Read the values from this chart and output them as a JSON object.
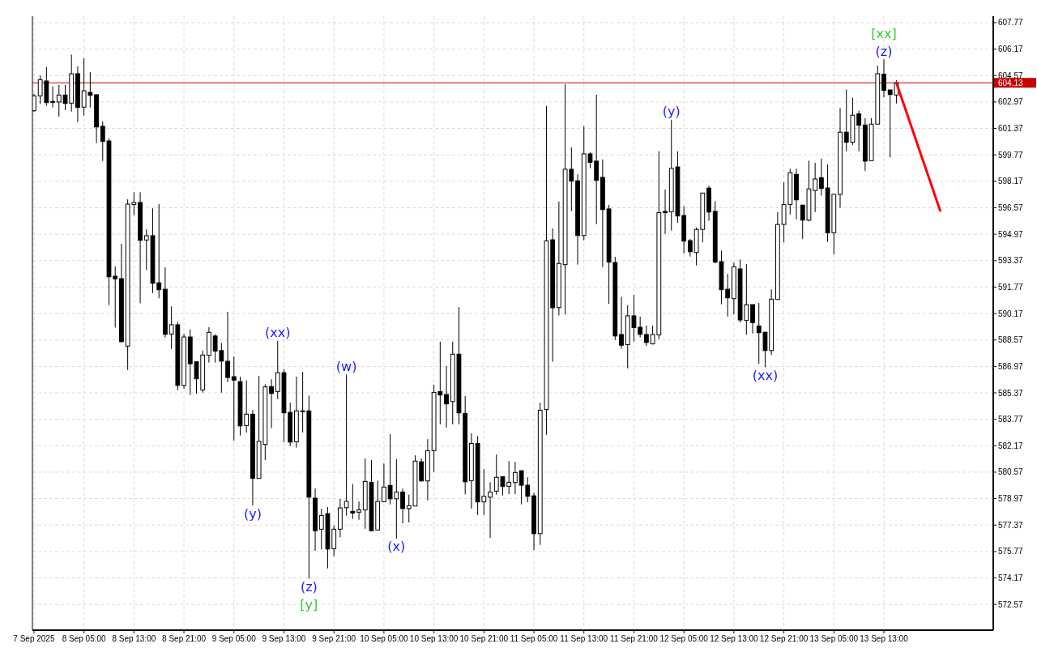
{
  "chart_data": {
    "type": "candlestick",
    "x": [
      "2025-09-07T21:00",
      "2025-09-07T22:00",
      "2025-09-07T23:00",
      "2025-09-08T00:00",
      "2025-09-08T01:00",
      "2025-09-08T02:00",
      "2025-09-08T03:00",
      "2025-09-08T04:00",
      "2025-09-08T05:00",
      "2025-09-08T06:00",
      "2025-09-08T07:00",
      "2025-09-08T08:00",
      "2025-09-08T09:00",
      "2025-09-08T10:00",
      "2025-09-08T11:00",
      "2025-09-08T12:00",
      "2025-09-08T13:00",
      "2025-09-08T14:00",
      "2025-09-08T15:00",
      "2025-09-08T16:00",
      "2025-09-08T17:00",
      "2025-09-08T18:00",
      "2025-09-08T19:00",
      "2025-09-08T20:00",
      "2025-09-08T21:00",
      "2025-09-08T22:00",
      "2025-09-08T23:00",
      "2025-09-09T00:00",
      "2025-09-09T01:00",
      "2025-09-09T02:00",
      "2025-09-09T03:00",
      "2025-09-09T04:00",
      "2025-09-09T05:00",
      "2025-09-09T06:00",
      "2025-09-09T07:00",
      "2025-09-09T08:00",
      "2025-09-09T09:00",
      "2025-09-09T10:00",
      "2025-09-09T11:00",
      "2025-09-09T12:00",
      "2025-09-09T13:00",
      "2025-09-09T14:00",
      "2025-09-09T15:00",
      "2025-09-09T16:00",
      "2025-09-09T17:00",
      "2025-09-09T18:00",
      "2025-09-09T19:00",
      "2025-09-09T20:00",
      "2025-09-09T21:00",
      "2025-09-09T22:00",
      "2025-09-09T23:00",
      "2025-09-10T00:00",
      "2025-09-10T01:00",
      "2025-09-10T02:00",
      "2025-09-10T03:00",
      "2025-09-10T04:00",
      "2025-09-10T05:00",
      "2025-09-10T06:00",
      "2025-09-10T07:00",
      "2025-09-10T08:00",
      "2025-09-10T09:00",
      "2025-09-10T10:00",
      "2025-09-10T11:00",
      "2025-09-10T12:00",
      "2025-09-10T13:00",
      "2025-09-10T14:00",
      "2025-09-10T15:00",
      "2025-09-10T16:00",
      "2025-09-10T17:00",
      "2025-09-10T18:00",
      "2025-09-10T19:00",
      "2025-09-10T20:00",
      "2025-09-10T21:00",
      "2025-09-10T22:00",
      "2025-09-10T23:00",
      "2025-09-11T00:00",
      "2025-09-11T01:00",
      "2025-09-11T02:00",
      "2025-09-11T03:00",
      "2025-09-11T04:00",
      "2025-09-11T05:00",
      "2025-09-11T06:00",
      "2025-09-11T07:00",
      "2025-09-11T08:00",
      "2025-09-11T09:00",
      "2025-09-11T10:00",
      "2025-09-11T11:00",
      "2025-09-11T12:00",
      "2025-09-11T13:00",
      "2025-09-11T14:00",
      "2025-09-11T15:00",
      "2025-09-11T16:00",
      "2025-09-11T17:00",
      "2025-09-11T18:00",
      "2025-09-11T19:00",
      "2025-09-11T20:00",
      "2025-09-11T21:00",
      "2025-09-11T22:00",
      "2025-09-11T23:00",
      "2025-09-12T00:00",
      "2025-09-12T01:00",
      "2025-09-12T02:00",
      "2025-09-12T03:00",
      "2025-09-12T04:00",
      "2025-09-12T05:00",
      "2025-09-12T06:00",
      "2025-09-12T07:00",
      "2025-09-12T08:00",
      "2025-09-12T09:00",
      "2025-09-12T10:00",
      "2025-09-12T11:00",
      "2025-09-12T12:00",
      "2025-09-12T13:00",
      "2025-09-12T14:00",
      "2025-09-12T15:00",
      "2025-09-12T16:00",
      "2025-09-12T17:00",
      "2025-09-12T18:00",
      "2025-09-12T19:00",
      "2025-09-12T20:00",
      "2025-09-12T21:00",
      "2025-09-12T22:00",
      "2025-09-12T23:00",
      "2025-09-13T00:00",
      "2025-09-13T01:00",
      "2025-09-13T02:00",
      "2025-09-13T03:00",
      "2025-09-13T04:00",
      "2025-09-13T05:00",
      "2025-09-13T06:00",
      "2025-09-13T07:00",
      "2025-09-13T08:00",
      "2025-09-13T09:00",
      "2025-09-13T10:00",
      "2025-09-13T11:00",
      "2025-09-13T12:00",
      "2025-09-13T13:00",
      "2025-09-13T14:00",
      "2025-09-13T15:00"
    ],
    "ohlc": [
      [
        602.44,
        603.46,
        602.38,
        603.34
      ],
      [
        603.34,
        604.57,
        602.85,
        604.32
      ],
      [
        604.24,
        605.09,
        602.74,
        602.93
      ],
      [
        603.0,
        603.91,
        602.64,
        602.98
      ],
      [
        602.97,
        604.0,
        602.08,
        603.39
      ],
      [
        603.39,
        604.0,
        602.48,
        602.88
      ],
      [
        602.9,
        605.84,
        602.39,
        604.68
      ],
      [
        604.68,
        605.12,
        601.76,
        602.64
      ],
      [
        602.66,
        605.61,
        602.15,
        603.65
      ],
      [
        603.55,
        604.78,
        602.64,
        603.37
      ],
      [
        603.41,
        603.41,
        600.48,
        601.46
      ],
      [
        601.5,
        601.79,
        599.4,
        600.58
      ],
      [
        600.61,
        600.76,
        590.68,
        592.39
      ],
      [
        592.43,
        593.02,
        589.32,
        592.27
      ],
      [
        592.28,
        594.39,
        588.39,
        588.47
      ],
      [
        588.2,
        597.08,
        586.76,
        596.79
      ],
      [
        596.77,
        597.51,
        596.12,
        596.89
      ],
      [
        596.89,
        597.51,
        590.79,
        594.6
      ],
      [
        594.62,
        595.26,
        592.8,
        594.88
      ],
      [
        594.88,
        596.53,
        591.41,
        592.0
      ],
      [
        592.03,
        596.79,
        591.09,
        591.61
      ],
      [
        591.64,
        592.97,
        588.72,
        588.91
      ],
      [
        588.93,
        590.6,
        588.03,
        589.49
      ],
      [
        589.49,
        589.67,
        585.53,
        585.82
      ],
      [
        585.82,
        588.95,
        585.61,
        588.75
      ],
      [
        588.75,
        589.21,
        585.24,
        587.13
      ],
      [
        587.25,
        587.25,
        585.32,
        586.22
      ],
      [
        585.55,
        587.93,
        585.38,
        587.66
      ],
      [
        587.64,
        589.34,
        587.2,
        589.03
      ],
      [
        588.81,
        588.91,
        587.2,
        587.9
      ],
      [
        587.93,
        588.39,
        585.38,
        587.29
      ],
      [
        587.28,
        590.27,
        586.02,
        586.3
      ],
      [
        586.35,
        587.57,
        582.48,
        586.14
      ],
      [
        586.05,
        586.35,
        582.79,
        583.37
      ],
      [
        583.39,
        586.12,
        582.97,
        584.08
      ],
      [
        584.08,
        584.34,
        578.55,
        580.19
      ],
      [
        580.19,
        586.4,
        580.19,
        582.43
      ],
      [
        582.25,
        585.89,
        581.31,
        585.73
      ],
      [
        585.75,
        586.19,
        583.23,
        585.33
      ],
      [
        585.45,
        588.52,
        584.99,
        586.59
      ],
      [
        586.59,
        586.79,
        582.39,
        584.16
      ],
      [
        584.19,
        584.78,
        582.15,
        582.39
      ],
      [
        582.41,
        586.35,
        582.05,
        584.28
      ],
      [
        584.28,
        586.64,
        582.97,
        584.26
      ],
      [
        584.28,
        585.21,
        574.13,
        579.06
      ],
      [
        579.0,
        579.58,
        575.81,
        577.03
      ],
      [
        577.12,
        578.36,
        575.89,
        577.95
      ],
      [
        578.06,
        578.46,
        574.75,
        575.92
      ],
      [
        575.94,
        577.34,
        575.48,
        577.12
      ],
      [
        577.12,
        578.95,
        576.63,
        578.41
      ],
      [
        578.42,
        586.48,
        577.93,
        578.8
      ],
      [
        578.2,
        579.86,
        577.74,
        578.1
      ],
      [
        578.15,
        578.8,
        577.69,
        578.29
      ],
      [
        578.29,
        581.4,
        577.15,
        580.01
      ],
      [
        579.96,
        581.3,
        576.99,
        577.03
      ],
      [
        577.07,
        580.06,
        577.07,
        578.8
      ],
      [
        578.78,
        581.1,
        578.78,
        579.67
      ],
      [
        579.77,
        582.87,
        578.62,
        578.96
      ],
      [
        578.96,
        581.35,
        576.55,
        579.37
      ],
      [
        579.37,
        579.57,
        577.48,
        578.37
      ],
      [
        578.37,
        579.21,
        577.53,
        578.54
      ],
      [
        578.52,
        581.59,
        578.52,
        581.24
      ],
      [
        581.2,
        581.4,
        579.99,
        580.04
      ],
      [
        580.04,
        582.57,
        578.86,
        581.87
      ],
      [
        581.87,
        585.86,
        580.58,
        585.4
      ],
      [
        585.45,
        588.47,
        583.46,
        585.24
      ],
      [
        585.27,
        587.0,
        583.27,
        584.7
      ],
      [
        584.84,
        588.47,
        583.46,
        587.71
      ],
      [
        587.71,
        590.56,
        583.46,
        584.16
      ],
      [
        584.13,
        585.17,
        579.23,
        579.99
      ],
      [
        580.06,
        582.92,
        578.37,
        582.31
      ],
      [
        582.31,
        582.76,
        577.98,
        578.77
      ],
      [
        578.77,
        580.76,
        577.98,
        579.11
      ],
      [
        579.06,
        579.96,
        576.59,
        579.37
      ],
      [
        579.42,
        581.64,
        579.21,
        580.26
      ],
      [
        580.3,
        580.3,
        579.16,
        579.7
      ],
      [
        579.72,
        581.24,
        579.24,
        579.96
      ],
      [
        579.94,
        581.2,
        579.24,
        580.55
      ],
      [
        580.66,
        580.66,
        578.62,
        579.78
      ],
      [
        579.78,
        580.26,
        578.75,
        579.11
      ],
      [
        579.14,
        579.32,
        575.86,
        576.85
      ],
      [
        576.85,
        584.78,
        576.17,
        584.32
      ],
      [
        584.37,
        602.72,
        582.83,
        594.57
      ],
      [
        594.63,
        595.32,
        587.25,
        590.52
      ],
      [
        590.53,
        596.94,
        590.06,
        593.2
      ],
      [
        593.13,
        604.04,
        590.11,
        598.9
      ],
      [
        598.9,
        600.22,
        596.36,
        598.18
      ],
      [
        598.2,
        598.59,
        593.13,
        594.89
      ],
      [
        594.89,
        601.5,
        594.6,
        599.83
      ],
      [
        599.83,
        599.93,
        598.96,
        599.31
      ],
      [
        599.39,
        603.41,
        595.58,
        598.23
      ],
      [
        598.41,
        599.49,
        592.98,
        596.46
      ],
      [
        596.5,
        596.74,
        590.76,
        593.28
      ],
      [
        593.26,
        593.6,
        588.57,
        588.81
      ],
      [
        588.9,
        591.17,
        588.03,
        588.25
      ],
      [
        588.29,
        590.68,
        586.85,
        590.03
      ],
      [
        590.03,
        591.3,
        588.47,
        589.32
      ],
      [
        589.34,
        589.98,
        588.72,
        588.91
      ],
      [
        588.9,
        589.44,
        588.21,
        588.42
      ],
      [
        588.34,
        589.44,
        588.29,
        588.9
      ],
      [
        588.88,
        599.99,
        588.62,
        596.28
      ],
      [
        596.35,
        597.67,
        594.99,
        596.27
      ],
      [
        596.33,
        601.9,
        595.19,
        598.95
      ],
      [
        599.04,
        599.98,
        595.66,
        596.07
      ],
      [
        596.1,
        596.66,
        593.81,
        594.55
      ],
      [
        594.58,
        594.68,
        593.62,
        593.91
      ],
      [
        593.86,
        595.38,
        593.08,
        595.26
      ],
      [
        595.26,
        597.46,
        594.47,
        597.46
      ],
      [
        597.76,
        597.9,
        595.78,
        596.31
      ],
      [
        596.35,
        596.97,
        593.21,
        593.28
      ],
      [
        593.31,
        593.98,
        590.73,
        591.61
      ],
      [
        591.64,
        592.57,
        589.99,
        591.12
      ],
      [
        591.07,
        593.25,
        590.12,
        593.0
      ],
      [
        592.87,
        593.44,
        589.62,
        589.78
      ],
      [
        589.75,
        593.16,
        588.88,
        590.7
      ],
      [
        590.71,
        590.71,
        588.96,
        589.62
      ],
      [
        589.42,
        590.81,
        587.13,
        589.01
      ],
      [
        589.04,
        589.04,
        586.92,
        587.93
      ],
      [
        587.93,
        591.63,
        587.66,
        591.04
      ],
      [
        591.02,
        596.3,
        591.01,
        595.56
      ],
      [
        595.56,
        598.11,
        594.47,
        596.77
      ],
      [
        596.77,
        598.93,
        596.17,
        598.69
      ],
      [
        598.59,
        598.93,
        595.87,
        597.05
      ],
      [
        596.73,
        596.73,
        594.67,
        595.82
      ],
      [
        595.82,
        599.42,
        595.75,
        597.71
      ],
      [
        597.61,
        599.29,
        596.31,
        598.31
      ],
      [
        598.39,
        599.54,
        597.3,
        597.74
      ],
      [
        597.77,
        599.19,
        594.5,
        595.06
      ],
      [
        595.06,
        597.38,
        593.75,
        597.38
      ],
      [
        597.38,
        602.61,
        596.56,
        601.14
      ],
      [
        601.14,
        603.72,
        599.99,
        600.53
      ],
      [
        600.53,
        603.23,
        600.37,
        602.17
      ],
      [
        602.25,
        602.44,
        599.99,
        601.56
      ],
      [
        601.58,
        601.99,
        598.8,
        599.39
      ],
      [
        599.42,
        601.99,
        599.42,
        601.63
      ],
      [
        601.63,
        605.17,
        601.63,
        604.68
      ],
      [
        604.65,
        605.55,
        603.26,
        603.67
      ],
      [
        603.7,
        603.7,
        599.62,
        603.42
      ],
      [
        603.39,
        604.28,
        602.88,
        604.13
      ]
    ],
    "series": [
      {
        "type": "line",
        "color": "#ff0000",
        "x": [
          "2025-09-13T15:00",
          "2025-09-13T22:00"
        ],
        "values": [
          604.13,
          596.4
        ]
      }
    ],
    "xlim": [
      "2025-09-07T20:45",
      "2025-09-14T06:30"
    ],
    "xticks": [
      {
        "value": "2025-09-07T21:00",
        "label": "7 Sep 2025"
      },
      {
        "value": "2025-09-08T05:00",
        "label": "8 Sep 05:00"
      },
      {
        "value": "2025-09-08T13:00",
        "label": "8 Sep 13:00"
      },
      {
        "value": "2025-09-08T21:00",
        "label": "8 Sep 21:00"
      },
      {
        "value": "2025-09-09T05:00",
        "label": "9 Sep 05:00"
      },
      {
        "value": "2025-09-09T13:00",
        "label": "9 Sep 13:00"
      },
      {
        "value": "2025-09-09T21:00",
        "label": "9 Sep 21:00"
      },
      {
        "value": "2025-09-10T05:00",
        "label": "10 Sep 05:00"
      },
      {
        "value": "2025-09-10T13:00",
        "label": "10 Sep 13:00"
      },
      {
        "value": "2025-09-10T21:00",
        "label": "10 Sep 21:00"
      },
      {
        "value": "2025-09-11T05:00",
        "label": "11 Sep 05:00"
      },
      {
        "value": "2025-09-11T13:00",
        "label": "11 Sep 13:00"
      },
      {
        "value": "2025-09-11T21:00",
        "label": "11 Sep 21:00"
      },
      {
        "value": "2025-09-12T05:00",
        "label": "12 Sep 05:00"
      },
      {
        "value": "2025-09-12T13:00",
        "label": "12 Sep 13:00"
      },
      {
        "value": "2025-09-12T21:00",
        "label": "12 Sep 21:00"
      },
      {
        "value": "2025-09-13T05:00",
        "label": "13 Sep 05:00"
      },
      {
        "value": "2025-09-13T13:00",
        "label": "13 Sep 13:00"
      }
    ],
    "ylim": [
      571.01,
      608.16
    ],
    "yticks": [
      572.57,
      574.17,
      575.77,
      577.37,
      578.97,
      580.57,
      582.17,
      583.77,
      585.37,
      586.97,
      588.57,
      590.17,
      591.77,
      593.37,
      594.97,
      596.57,
      598.17,
      599.77,
      601.37,
      602.97,
      604.57,
      606.17,
      607.77
    ],
    "grid": true,
    "ref_lines": [
      {
        "axis": "y",
        "value": 604.13,
        "label": "604.13",
        "color": "#c80000"
      }
    ],
    "annotations": [
      {
        "text": "(y)",
        "x": "2025-09-09T08:00",
        "y": 578.55
      },
      {
        "text": "(xx)",
        "x": "2025-09-09T12:00",
        "y": 588.52
      },
      {
        "text": "(z)",
        "x": "2025-09-09T17:00",
        "y": 574.13
      },
      {
        "text": "[y]",
        "x": "2025-09-09T17:00",
        "y": 574.13
      },
      {
        "text": "(w)",
        "x": "2025-09-09T23:00",
        "y": 586.48
      },
      {
        "text": "(x)",
        "x": "2025-09-10T07:00",
        "y": 576.55
      },
      {
        "text": "(y)",
        "x": "2025-09-12T03:00",
        "y": 601.9
      },
      {
        "text": "(xx)",
        "x": "2025-09-12T18:00",
        "y": 586.92
      },
      {
        "text": "(z)",
        "x": "2025-09-13T13:00",
        "y": 605.55
      },
      {
        "text": "[xx]",
        "x": "2025-09-13T13:00",
        "y": 605.55
      }
    ]
  }
}
